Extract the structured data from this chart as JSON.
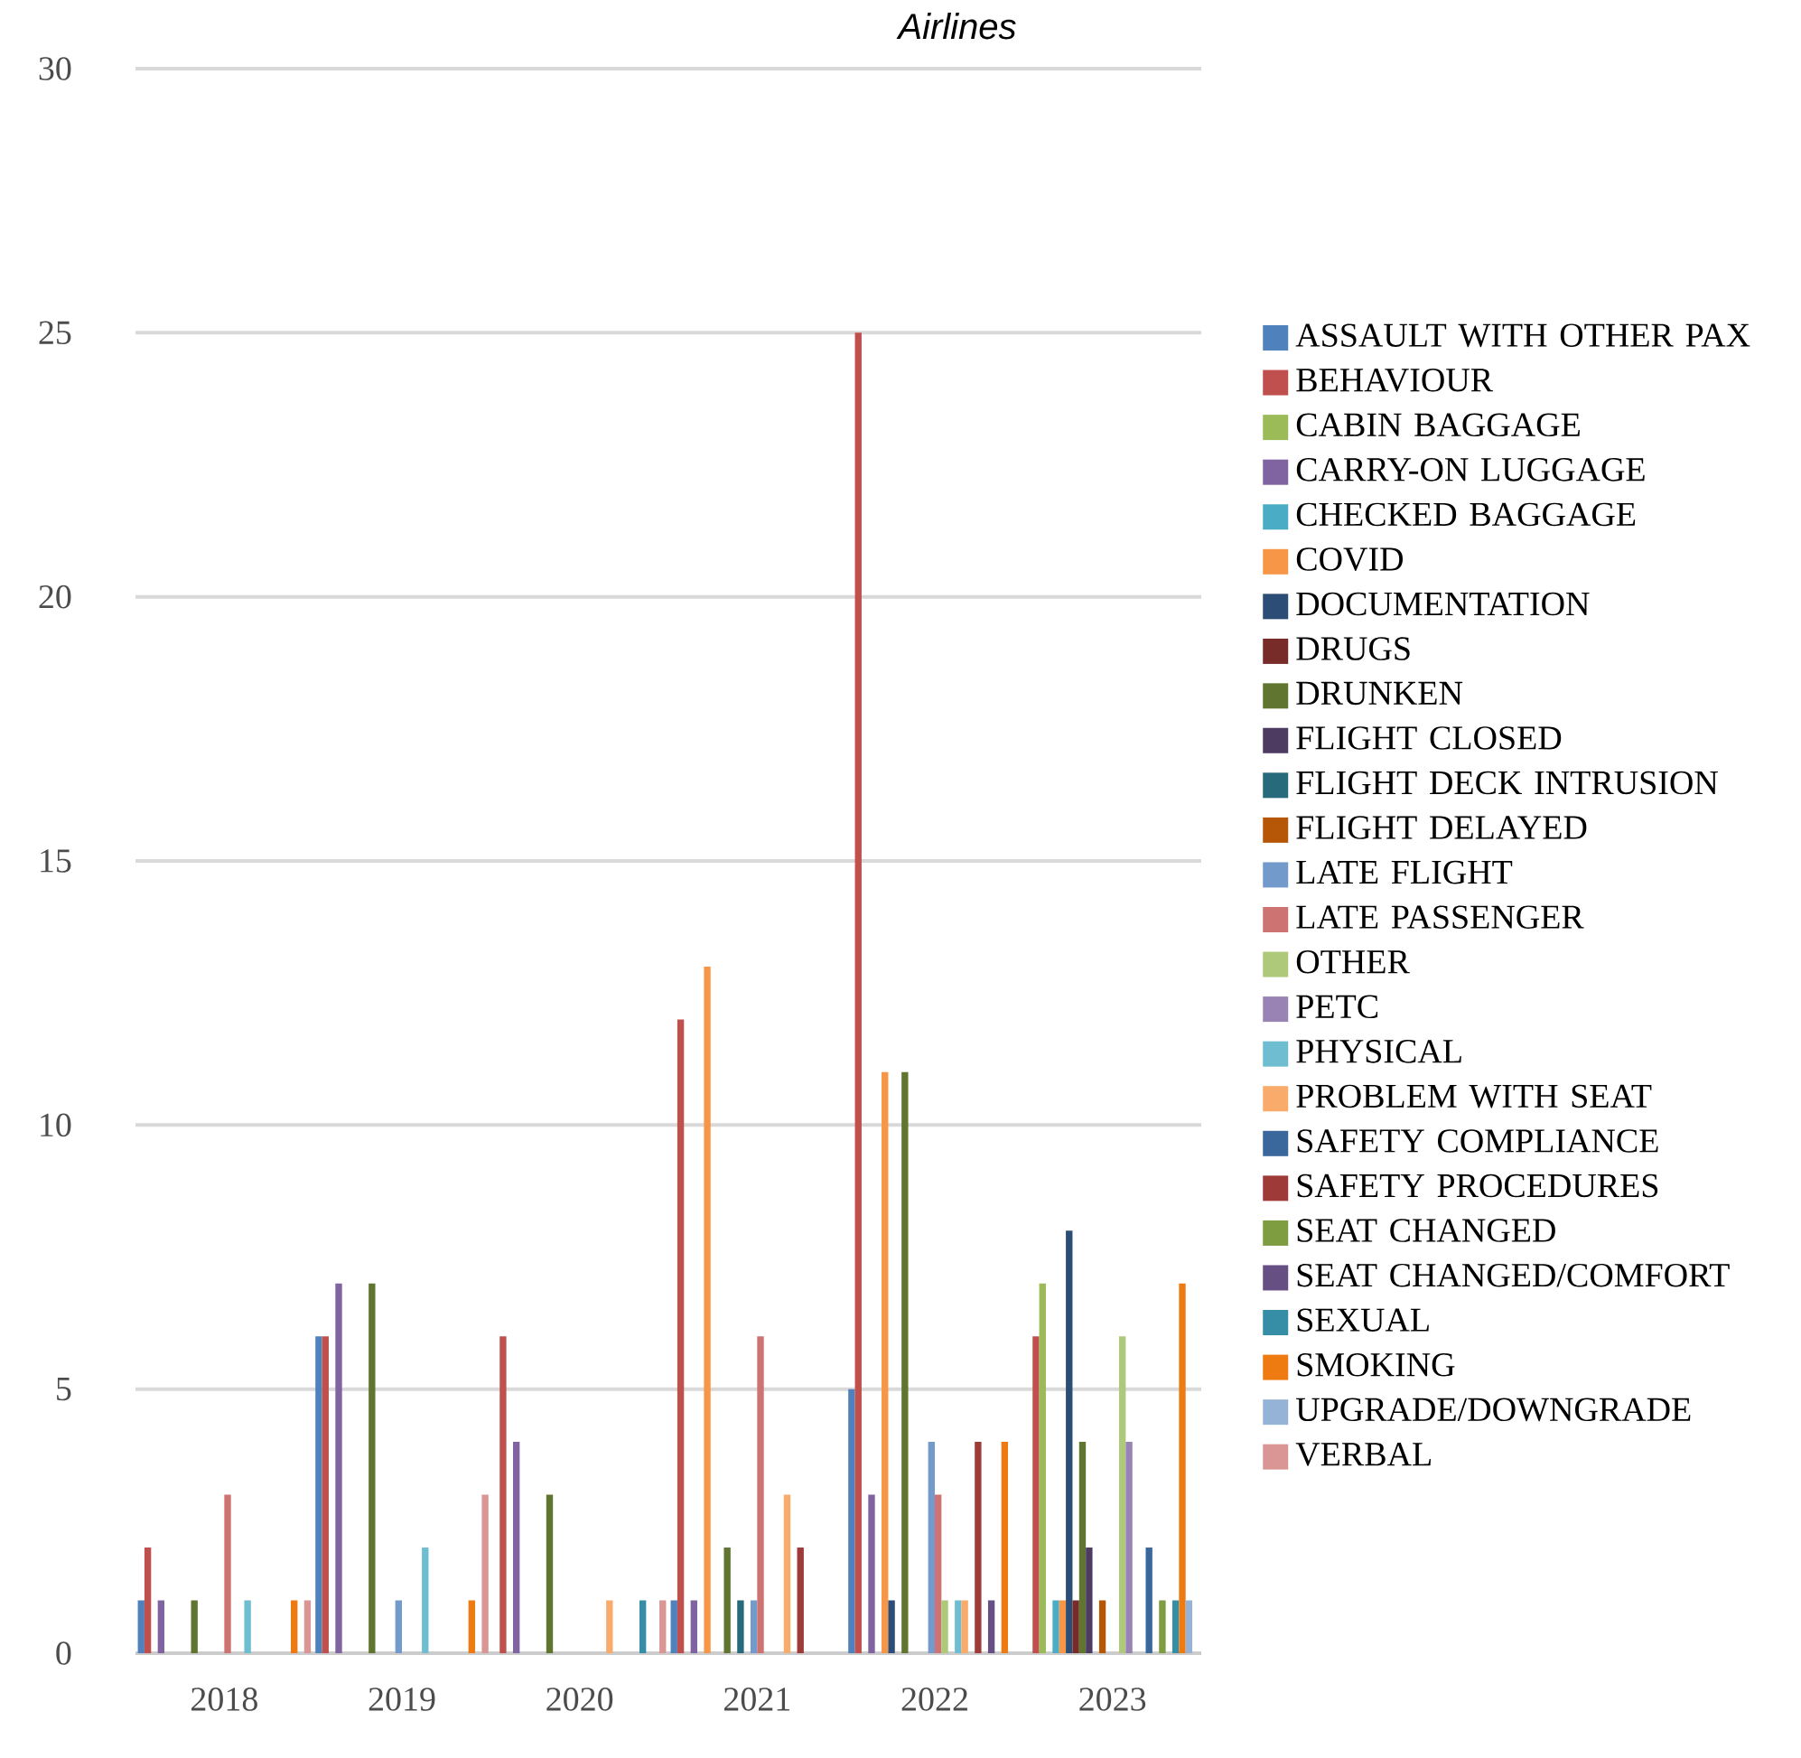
{
  "chart_data": {
    "type": "bar",
    "title": "Airlines",
    "categories": [
      "2018",
      "2019",
      "2020",
      "2021",
      "2022",
      "2023"
    ],
    "ylim": [
      0,
      30
    ],
    "yticks": [
      0,
      5,
      10,
      15,
      20,
      25,
      30
    ],
    "grid": "y",
    "legend": "right",
    "series": [
      {
        "name": "ASSAULT WITH OTHER PAX",
        "color": "#4f81bd",
        "values": [
          1,
          6,
          null,
          1,
          5,
          null
        ]
      },
      {
        "name": "BEHAVIOUR",
        "color": "#c0504d",
        "values": [
          2,
          6,
          6,
          12,
          25,
          6
        ]
      },
      {
        "name": "CABIN BAGGAGE",
        "color": "#9bbb59",
        "values": [
          null,
          null,
          null,
          null,
          null,
          7
        ]
      },
      {
        "name": "CARRY-ON LUGGAGE",
        "color": "#8064a2",
        "values": [
          1,
          7,
          4,
          1,
          3,
          null
        ]
      },
      {
        "name": "CHECKED BAGGAGE",
        "color": "#4bacc6",
        "values": [
          null,
          null,
          null,
          null,
          null,
          1
        ]
      },
      {
        "name": "COVID",
        "color": "#f79646",
        "values": [
          null,
          null,
          null,
          13,
          11,
          1
        ]
      },
      {
        "name": "DOCUMENTATION",
        "color": "#2c4d75",
        "values": [
          null,
          null,
          null,
          null,
          1,
          8
        ]
      },
      {
        "name": "DRUGS",
        "color": "#772c2a",
        "values": [
          null,
          null,
          null,
          null,
          null,
          1
        ]
      },
      {
        "name": "DRUNKEN",
        "color": "#5f7530",
        "values": [
          1,
          7,
          3,
          2,
          11,
          4
        ]
      },
      {
        "name": "FLIGHT CLOSED",
        "color": "#4d3b62",
        "values": [
          null,
          null,
          null,
          null,
          null,
          2
        ]
      },
      {
        "name": "FLIGHT DECK INTRUSION",
        "color": "#276a7c",
        "values": [
          null,
          null,
          null,
          1,
          null,
          null
        ]
      },
      {
        "name": "FLIGHT DELAYED",
        "color": "#b65708",
        "values": [
          null,
          null,
          null,
          null,
          null,
          1
        ]
      },
      {
        "name": "LATE FLIGHT",
        "color": "#729aca",
        "values": [
          null,
          1,
          null,
          1,
          4,
          null
        ]
      },
      {
        "name": "LATE PASSENGER",
        "color": "#cd7371",
        "values": [
          3,
          null,
          null,
          6,
          3,
          null
        ]
      },
      {
        "name": "OTHER",
        "color": "#afc97a",
        "values": [
          null,
          null,
          null,
          null,
          1,
          6
        ]
      },
      {
        "name": "PETC",
        "color": "#9983b5",
        "values": [
          null,
          null,
          null,
          null,
          null,
          4
        ]
      },
      {
        "name": "PHYSICAL",
        "color": "#6fbdd1",
        "values": [
          1,
          2,
          null,
          null,
          1,
          null
        ]
      },
      {
        "name": "PROBLEM WITH SEAT",
        "color": "#f9ab6b",
        "values": [
          null,
          null,
          1,
          3,
          1,
          null
        ]
      },
      {
        "name": "SAFETY COMPLIANCE",
        "color": "#3a679c",
        "values": [
          null,
          null,
          null,
          null,
          null,
          2
        ]
      },
      {
        "name": "SAFETY PROCEDURES",
        "color": "#9e3b38",
        "values": [
          null,
          null,
          null,
          2,
          4,
          null
        ]
      },
      {
        "name": "SEAT CHANGED",
        "color": "#7e9c40",
        "values": [
          null,
          null,
          null,
          null,
          null,
          1
        ]
      },
      {
        "name": "SEAT CHANGED/COMFORT",
        "color": "#664f83",
        "values": [
          null,
          null,
          null,
          null,
          1,
          null
        ]
      },
      {
        "name": "SEXUAL",
        "color": "#358ea6",
        "values": [
          null,
          null,
          1,
          null,
          null,
          1
        ]
      },
      {
        "name": "SMOKING",
        "color": "#ee7a12",
        "values": [
          1,
          1,
          null,
          null,
          4,
          7
        ]
      },
      {
        "name": "UPGRADE/DOWNGRADE",
        "color": "#95b3d7",
        "values": [
          null,
          null,
          null,
          null,
          null,
          1
        ]
      },
      {
        "name": "VERBAL",
        "color": "#d99694",
        "values": [
          1,
          3,
          1,
          null,
          null,
          null
        ]
      }
    ]
  }
}
